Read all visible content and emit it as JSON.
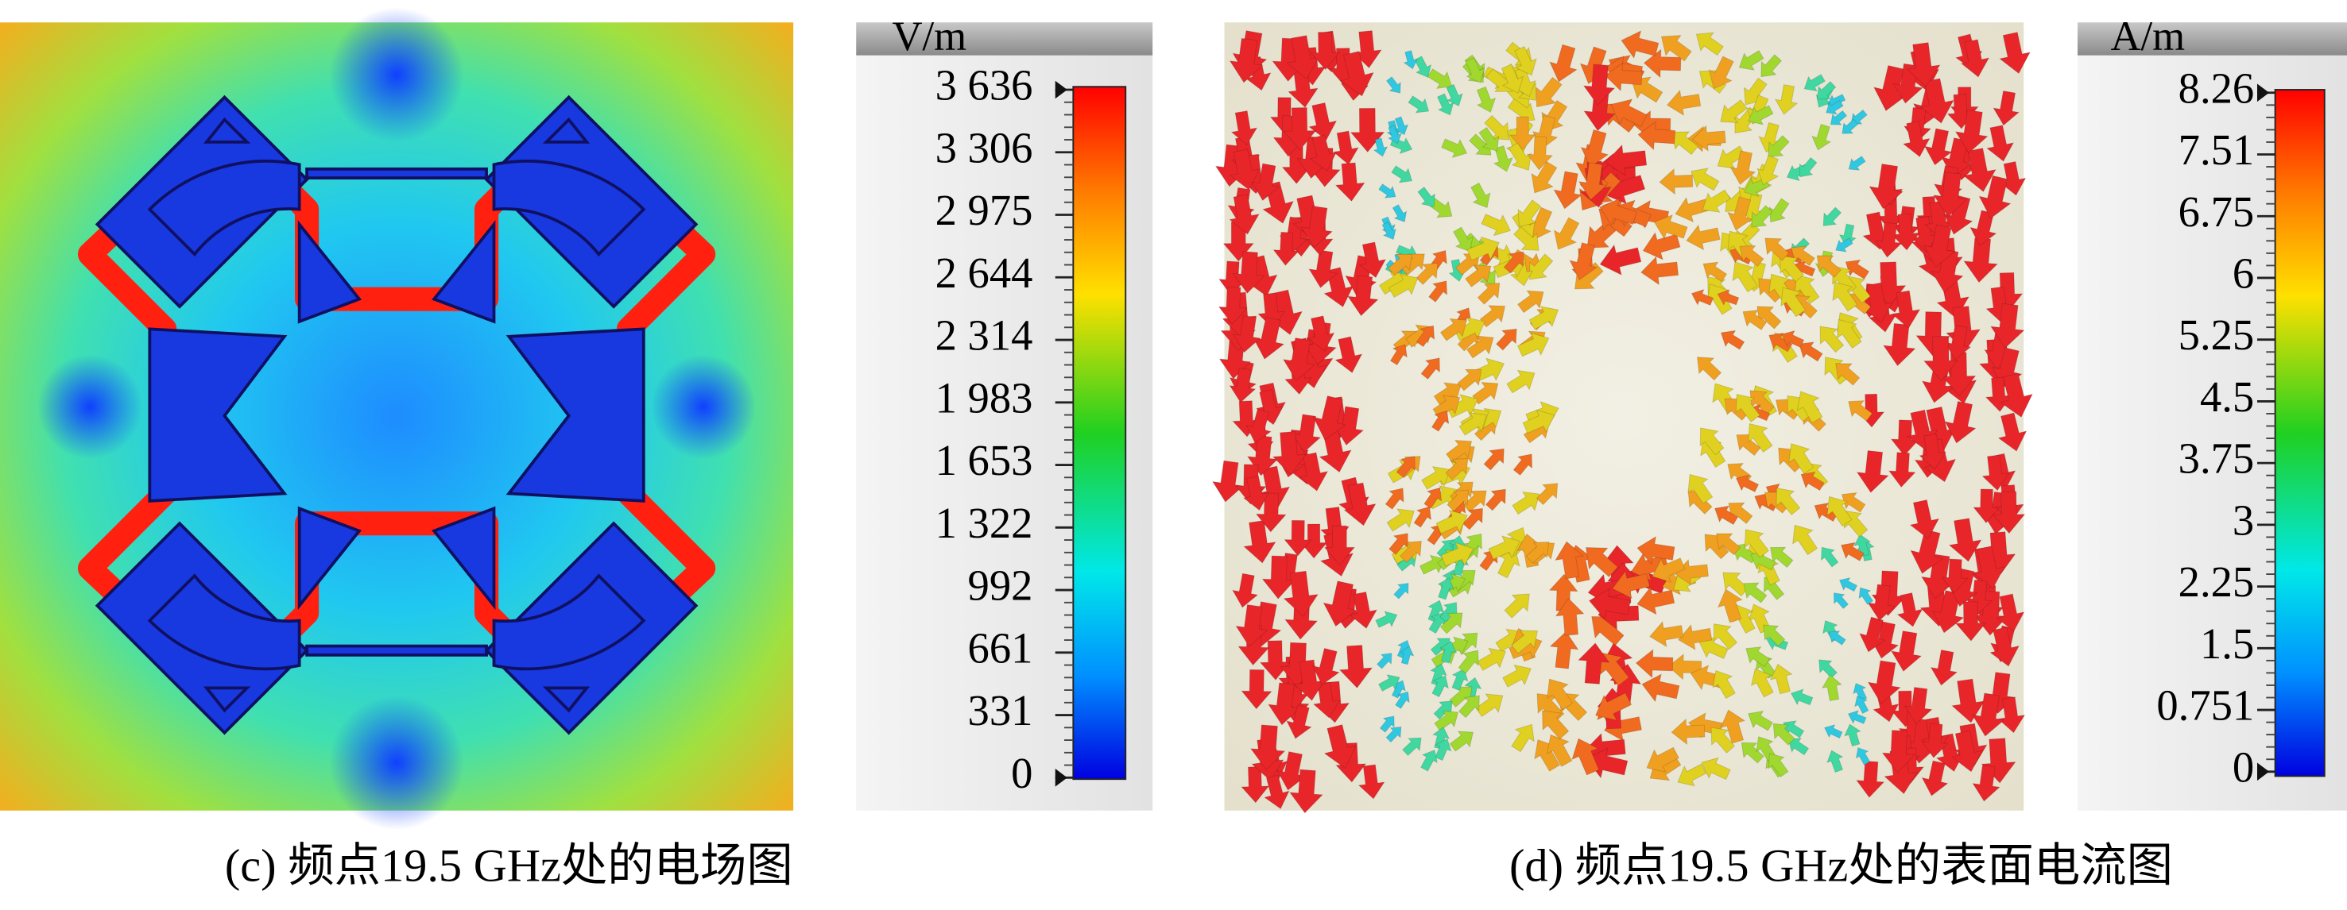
{
  "panels": [
    {
      "caption": "(c) 频点19.5 GHz处的电场图",
      "unit": "V/m",
      "ticks": [
        "3 636",
        "3 306",
        "2 975",
        "2 644",
        "2 314",
        "1 983",
        "1 653",
        "1 322",
        "992",
        "661",
        "331",
        "0"
      ]
    },
    {
      "caption": "(d) 频点19.5 GHz处的表面电流图",
      "unit": "A/m",
      "ticks": [
        "8.26",
        "7.51",
        "6.75",
        "6",
        "5.25",
        "4.5",
        "3.75",
        "3",
        "2.25",
        "1.5",
        "0.751",
        "0"
      ]
    }
  ]
}
